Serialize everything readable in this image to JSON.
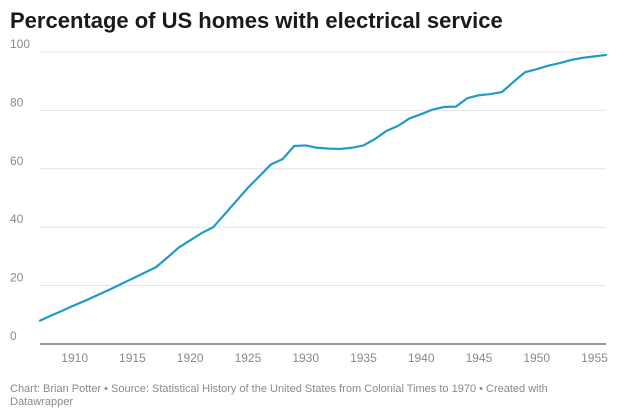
{
  "title": "Percentage of US homes with electrical service",
  "footer": "Chart: Brian Potter • Source: Statistical History of the United States from Colonial Times to 1970 • Created with Datawrapper",
  "colors": {
    "line": "#1f9ac9",
    "grid": "#e3e3e3",
    "axis": "#333333"
  },
  "chart_data": {
    "type": "line",
    "title": "Percentage of US homes with electrical service",
    "xlabel": "",
    "ylabel": "",
    "xlim": [
      1907,
      1956
    ],
    "ylim": [
      0,
      100
    ],
    "x_ticks": [
      1910,
      1915,
      1920,
      1925,
      1930,
      1935,
      1940,
      1945,
      1950,
      1955
    ],
    "y_ticks": [
      0,
      20,
      40,
      60,
      80,
      100
    ],
    "grid": true,
    "legend": "none",
    "series": [
      {
        "x": [
          1907,
          1908,
          1909,
          1910,
          1911,
          1912,
          1913,
          1914,
          1915,
          1916,
          1917,
          1918,
          1919,
          1920,
          1921,
          1922,
          1923,
          1924,
          1925,
          1926,
          1927,
          1928,
          1929,
          1930,
          1931,
          1932,
          1933,
          1934,
          1935,
          1936,
          1937,
          1938,
          1939,
          1940,
          1941,
          1942,
          1943,
          1944,
          1945,
          1946,
          1947,
          1948,
          1949,
          1950,
          1951,
          1952,
          1953,
          1954,
          1955,
          1956
        ],
        "values": [
          8,
          9.8,
          11.5,
          13.3,
          15,
          16.8,
          18.6,
          20.5,
          22.4,
          24.3,
          26.2,
          29.5,
          33,
          35.5,
          38,
          40,
          44.5,
          49,
          53.5,
          57.5,
          61.5,
          63.3,
          67.8,
          68,
          67.2,
          66.9,
          66.8,
          67.2,
          68,
          70.2,
          73,
          74.7,
          77.3,
          78.7,
          80.3,
          81.2,
          81.3,
          84.2,
          85.2,
          85.6,
          86.3,
          89.8,
          93.1,
          94.1,
          95.3,
          96.2,
          97.3,
          98,
          98.5,
          99
        ]
      }
    ]
  }
}
